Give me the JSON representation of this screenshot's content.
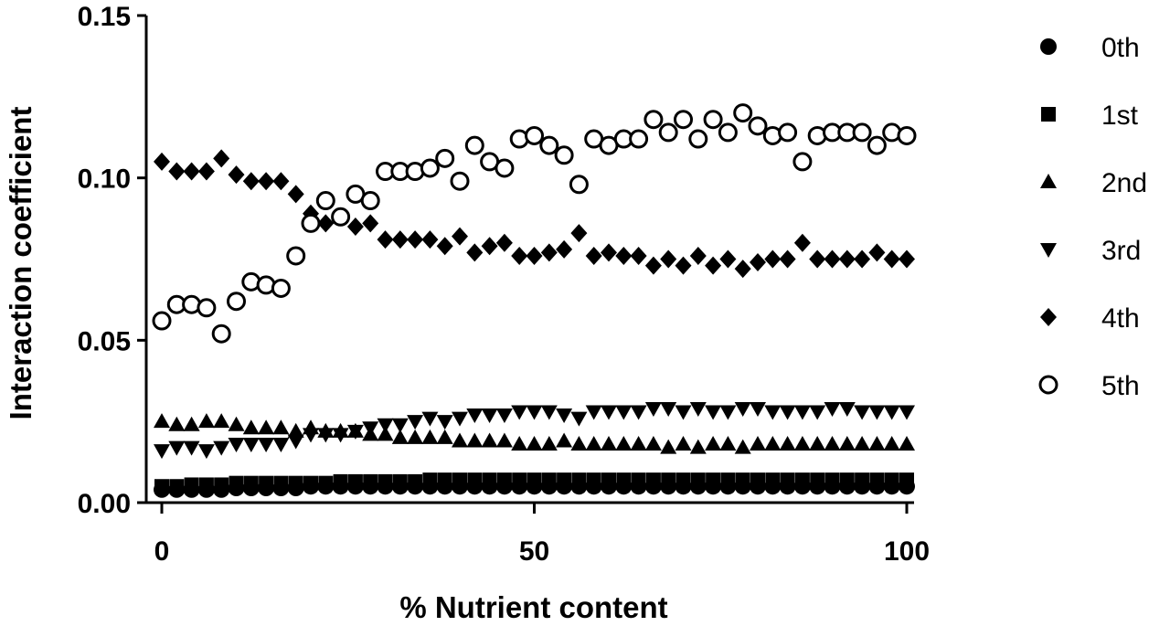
{
  "chart_data": {
    "type": "scatter",
    "title": "",
    "xlabel": "% Nutrient content",
    "ylabel": "Interaction coefficient",
    "xlim": [
      0,
      100
    ],
    "ylim": [
      0,
      0.15
    ],
    "xticks": [
      "0",
      "50",
      "100"
    ],
    "yticks": [
      "0.00",
      "0.05",
      "0.10",
      "0.15"
    ],
    "grid": false,
    "legend_position": "right",
    "x": [
      0,
      2,
      4,
      6,
      8,
      10,
      12,
      14,
      16,
      18,
      20,
      22,
      24,
      26,
      28,
      30,
      32,
      34,
      36,
      38,
      40,
      42,
      44,
      46,
      48,
      50,
      52,
      54,
      56,
      58,
      60,
      62,
      64,
      66,
      68,
      70,
      72,
      74,
      76,
      78,
      80,
      82,
      84,
      86,
      88,
      90,
      92,
      94,
      96,
      98,
      100
    ],
    "series": [
      {
        "name": "0th",
        "marker": "circle-filled",
        "values": [
          0.004,
          0.004,
          0.004,
          0.004,
          0.004,
          0.0045,
          0.0045,
          0.0045,
          0.0045,
          0.0045,
          0.005,
          0.005,
          0.005,
          0.005,
          0.005,
          0.005,
          0.005,
          0.005,
          0.005,
          0.005,
          0.005,
          0.005,
          0.005,
          0.005,
          0.005,
          0.005,
          0.005,
          0.005,
          0.005,
          0.005,
          0.005,
          0.005,
          0.005,
          0.005,
          0.005,
          0.005,
          0.005,
          0.005,
          0.005,
          0.005,
          0.005,
          0.005,
          0.005,
          0.005,
          0.005,
          0.005,
          0.005,
          0.005,
          0.005,
          0.005,
          0.005
        ]
      },
      {
        "name": "1st",
        "marker": "square-filled",
        "values": [
          0.005,
          0.005,
          0.0055,
          0.0055,
          0.0055,
          0.006,
          0.006,
          0.006,
          0.006,
          0.006,
          0.006,
          0.006,
          0.0065,
          0.0065,
          0.0065,
          0.0065,
          0.0065,
          0.0065,
          0.007,
          0.007,
          0.007,
          0.007,
          0.007,
          0.007,
          0.007,
          0.007,
          0.007,
          0.007,
          0.007,
          0.007,
          0.007,
          0.007,
          0.007,
          0.007,
          0.007,
          0.007,
          0.007,
          0.007,
          0.007,
          0.007,
          0.007,
          0.007,
          0.007,
          0.007,
          0.007,
          0.007,
          0.007,
          0.007,
          0.007,
          0.007,
          0.007
        ]
      },
      {
        "name": "2nd",
        "marker": "triangle-up-filled",
        "values": [
          0.025,
          0.024,
          0.024,
          0.025,
          0.025,
          0.024,
          0.023,
          0.023,
          0.023,
          0.022,
          0.023,
          0.022,
          0.022,
          0.022,
          0.021,
          0.021,
          0.02,
          0.02,
          0.02,
          0.02,
          0.019,
          0.019,
          0.019,
          0.019,
          0.018,
          0.018,
          0.018,
          0.019,
          0.018,
          0.018,
          0.018,
          0.018,
          0.018,
          0.018,
          0.017,
          0.018,
          0.017,
          0.018,
          0.018,
          0.017,
          0.018,
          0.018,
          0.018,
          0.018,
          0.018,
          0.018,
          0.018,
          0.018,
          0.018,
          0.018,
          0.018
        ]
      },
      {
        "name": "3rd",
        "marker": "triangle-down-filled",
        "values": [
          0.016,
          0.017,
          0.017,
          0.016,
          0.017,
          0.018,
          0.018,
          0.018,
          0.018,
          0.019,
          0.021,
          0.021,
          0.021,
          0.022,
          0.023,
          0.024,
          0.024,
          0.025,
          0.026,
          0.025,
          0.026,
          0.027,
          0.027,
          0.027,
          0.028,
          0.028,
          0.028,
          0.027,
          0.026,
          0.028,
          0.028,
          0.028,
          0.028,
          0.029,
          0.029,
          0.028,
          0.029,
          0.028,
          0.028,
          0.029,
          0.029,
          0.028,
          0.028,
          0.028,
          0.028,
          0.029,
          0.029,
          0.028,
          0.028,
          0.028,
          0.028
        ]
      },
      {
        "name": "4th",
        "marker": "diamond-filled",
        "values": [
          0.105,
          0.102,
          0.102,
          0.102,
          0.106,
          0.101,
          0.099,
          0.099,
          0.099,
          0.095,
          0.089,
          0.086,
          0.088,
          0.085,
          0.086,
          0.081,
          0.081,
          0.081,
          0.081,
          0.079,
          0.082,
          0.077,
          0.079,
          0.08,
          0.076,
          0.076,
          0.077,
          0.078,
          0.083,
          0.076,
          0.077,
          0.076,
          0.076,
          0.073,
          0.075,
          0.073,
          0.076,
          0.073,
          0.075,
          0.072,
          0.074,
          0.075,
          0.075,
          0.08,
          0.075,
          0.075,
          0.075,
          0.075,
          0.077,
          0.075,
          0.075
        ]
      },
      {
        "name": "5th",
        "marker": "circle-open",
        "values": [
          0.056,
          0.061,
          0.061,
          0.06,
          0.052,
          0.062,
          0.068,
          0.067,
          0.066,
          0.076,
          0.086,
          0.093,
          0.088,
          0.095,
          0.093,
          0.102,
          0.102,
          0.102,
          0.103,
          0.106,
          0.099,
          0.11,
          0.105,
          0.103,
          0.112,
          0.113,
          0.11,
          0.107,
          0.098,
          0.112,
          0.11,
          0.112,
          0.112,
          0.118,
          0.114,
          0.118,
          0.112,
          0.118,
          0.114,
          0.12,
          0.116,
          0.113,
          0.114,
          0.105,
          0.113,
          0.114,
          0.114,
          0.114,
          0.11,
          0.114,
          0.113
        ]
      }
    ]
  }
}
